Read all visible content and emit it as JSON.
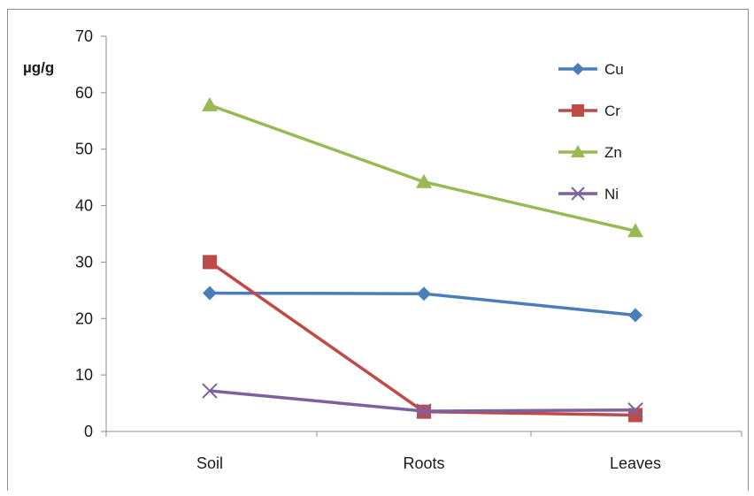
{
  "chart_data": {
    "type": "line",
    "title": "",
    "xlabel": "",
    "ylabel": "µg/g",
    "categories": [
      "Soil",
      "Roots",
      "Leaves"
    ],
    "ylim": [
      0,
      70
    ],
    "yticks": [
      0,
      10,
      20,
      30,
      40,
      50,
      60,
      70
    ],
    "grid": false,
    "legend_position": "top-right",
    "series": [
      {
        "name": "Cu",
        "values": [
          24.5,
          24.4,
          20.6
        ],
        "color": "#4a7ebb",
        "marker": "diamond"
      },
      {
        "name": "Cr",
        "values": [
          30.0,
          3.5,
          2.9
        ],
        "color": "#be4b48",
        "marker": "square"
      },
      {
        "name": "Zn",
        "values": [
          57.8,
          44.2,
          35.5
        ],
        "color": "#98b954",
        "marker": "triangle"
      },
      {
        "name": "Ni",
        "values": [
          7.2,
          3.6,
          3.8
        ],
        "color": "#7d60a0",
        "marker": "x"
      }
    ]
  }
}
